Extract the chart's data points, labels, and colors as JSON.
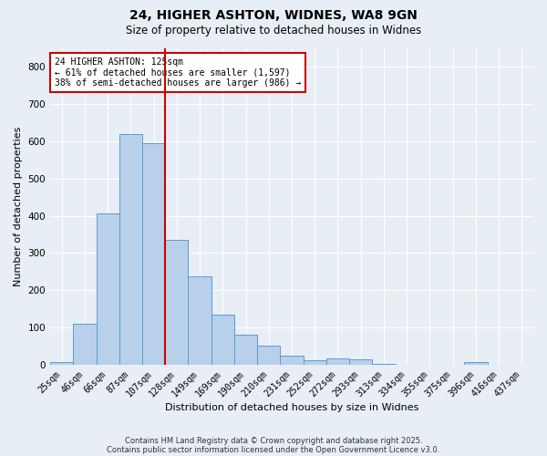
{
  "title1": "24, HIGHER ASHTON, WIDNES, WA8 9GN",
  "title2": "Size of property relative to detached houses in Widnes",
  "xlabel": "Distribution of detached houses by size in Widnes",
  "ylabel": "Number of detached properties",
  "categories": [
    "25sqm",
    "46sqm",
    "66sqm",
    "87sqm",
    "107sqm",
    "128sqm",
    "149sqm",
    "169sqm",
    "190sqm",
    "210sqm",
    "231sqm",
    "252sqm",
    "272sqm",
    "293sqm",
    "313sqm",
    "334sqm",
    "355sqm",
    "375sqm",
    "396sqm",
    "416sqm",
    "437sqm"
  ],
  "values": [
    8,
    110,
    405,
    620,
    595,
    335,
    237,
    135,
    80,
    52,
    25,
    12,
    17,
    15,
    3,
    1,
    0,
    0,
    8,
    0,
    0
  ],
  "bar_color": "#b8d0ea",
  "bar_edge_color": "#5b9bd5",
  "bg_color": "#e8eef6",
  "grid_color": "#ffffff",
  "vline_x": 4.5,
  "vline_color": "#cc0000",
  "annotation_title": "24 HIGHER ASHTON: 125sqm",
  "annotation_line1": "← 61% of detached houses are smaller (1,597)",
  "annotation_line2": "38% of semi-detached houses are larger (986) →",
  "annotation_box_color": "#ffffff",
  "annotation_box_edge": "#cc0000",
  "ylim": [
    0,
    850
  ],
  "yticks": [
    0,
    100,
    200,
    300,
    400,
    500,
    600,
    700,
    800
  ],
  "footer1": "Contains HM Land Registry data © Crown copyright and database right 2025.",
  "footer2": "Contains public sector information licensed under the Open Government Licence v3.0.",
  "title1_fontsize": 10,
  "title2_fontsize": 8.5,
  "ylabel_fontsize": 8,
  "xlabel_fontsize": 8,
  "tick_fontsize": 7,
  "footer_fontsize": 6
}
